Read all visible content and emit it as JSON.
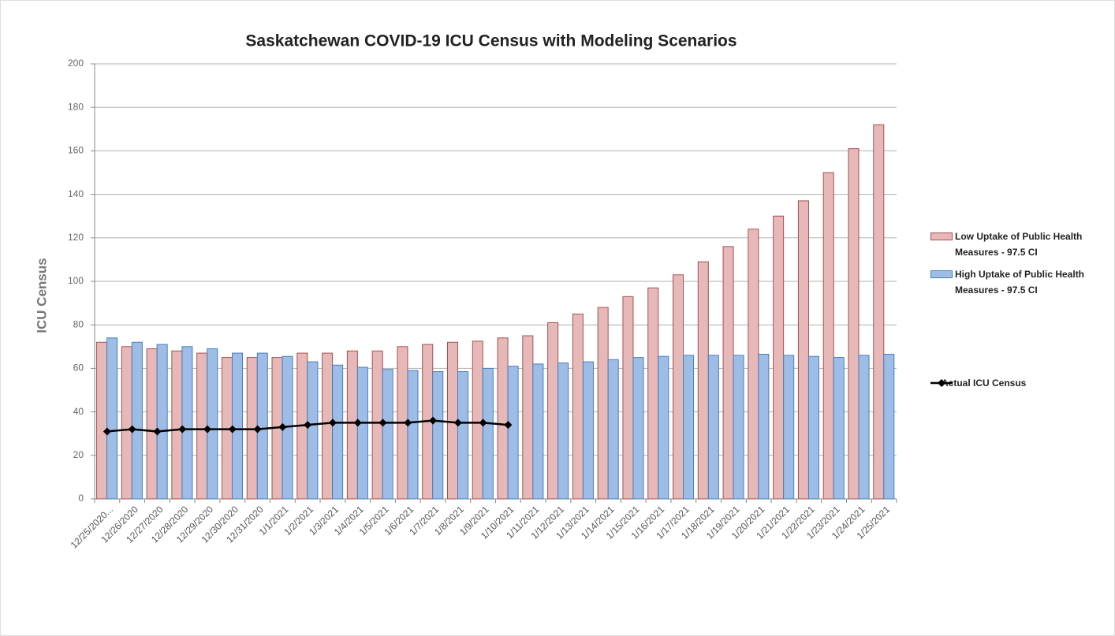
{
  "chart_data": {
    "type": "bar",
    "title": "Saskatchewan COVID-19 ICU Census with Modeling Scenarios",
    "y_label": "ICU Census",
    "categories": [
      "12/25/2020...",
      "12/26/2020",
      "12/27/2020",
      "12/28/2020",
      "12/29/2020",
      "12/30/2020",
      "12/31/2020",
      "1/1/2021",
      "1/2/2021",
      "1/3/2021",
      "1/4/2021",
      "1/5/2021",
      "1/6/2021",
      "1/7/2021",
      "1/8/2021",
      "1/9/2021",
      "1/10/2021",
      "1/11/2021",
      "1/12/2021",
      "1/13/2021",
      "1/14/2021",
      "1/15/2021",
      "1/16/2021",
      "1/17/2021",
      "1/18/2021",
      "1/19/2021",
      "1/20/2021",
      "1/21/2021",
      "1/22/2021",
      "1/23/2021",
      "1/24/2021",
      "1/25/2021"
    ],
    "series": [
      {
        "name": "Low Uptake of Public Health Measures - 97.5 CI",
        "type": "bar",
        "color": "#e6b9b8",
        "stroke": "#a5514f",
        "values": [
          72,
          70,
          69,
          68,
          67,
          65,
          65,
          65,
          67,
          67,
          68,
          68,
          70,
          71,
          72,
          72.5,
          74,
          75,
          81,
          85,
          88,
          93,
          97,
          103,
          109,
          116,
          124,
          130,
          137,
          150,
          161,
          172
        ]
      },
      {
        "name": "High Uptake of Public Health Measures - 97.5 CI",
        "type": "bar",
        "color": "#9dbde6",
        "stroke": "#4a7ebb",
        "values": [
          74,
          72,
          71,
          70,
          69,
          67,
          67,
          65.5,
          63,
          61.5,
          60.5,
          59.5,
          59,
          58.5,
          58.5,
          60,
          61,
          62,
          62.5,
          63,
          64,
          65,
          65.5,
          66,
          66,
          66,
          66.5,
          66,
          65.5,
          65,
          66,
          66.5
        ]
      },
      {
        "name": "Actual ICU Census",
        "type": "line",
        "color": "#000000",
        "values": [
          31,
          32,
          31,
          32,
          32,
          32,
          32,
          33,
          34,
          35,
          35,
          35,
          35,
          36,
          35,
          35,
          34,
          null,
          null,
          null,
          null,
          null,
          null,
          null,
          null,
          null,
          null,
          null,
          null,
          null,
          null,
          null
        ]
      }
    ],
    "ylim": [
      0,
      200
    ],
    "yticks": [
      0,
      20,
      40,
      60,
      80,
      100,
      120,
      140,
      160,
      180,
      200
    ],
    "grid": true,
    "legend": "right"
  }
}
